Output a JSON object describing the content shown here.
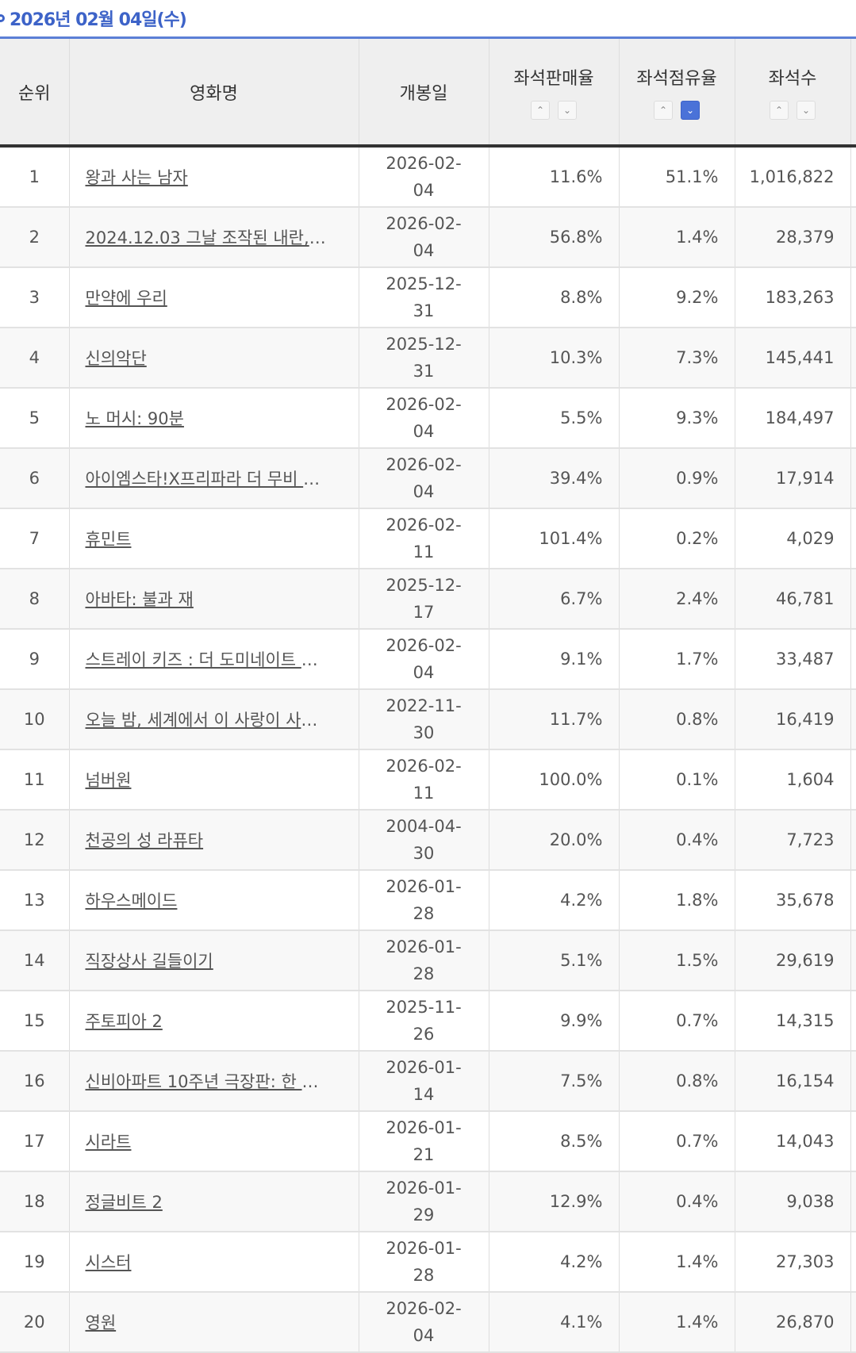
{
  "date_label": "2026년 02월 04일(수)",
  "accent_color": "#3d63c8",
  "columns": {
    "rank": "순위",
    "title": "영화명",
    "release": "개봉일",
    "sale_rate": "좌석판매율",
    "occupancy": "좌석점유율",
    "seats": "좌석수"
  },
  "sort": {
    "up": "^",
    "down": "v",
    "active": "occupancy-desc"
  },
  "ellipsis": "…",
  "rows": [
    {
      "rank": "1",
      "title": "왕과 사는 남자",
      "trunc": false,
      "release": "2026-02-04",
      "sale": "11.6%",
      "occ": "51.1%",
      "seats": "1,016,822"
    },
    {
      "rank": "2",
      "title": "2024.12.03 그날 조작된 내란,",
      "trunc": true,
      "release": "2026-02-04",
      "sale": "56.8%",
      "occ": "1.4%",
      "seats": "28,379"
    },
    {
      "rank": "3",
      "title": "만약에 우리",
      "trunc": false,
      "release": "2025-12-31",
      "sale": "8.8%",
      "occ": "9.2%",
      "seats": "183,263"
    },
    {
      "rank": "4",
      "title": "신의악단",
      "trunc": false,
      "release": "2025-12-31",
      "sale": "10.3%",
      "occ": "7.3%",
      "seats": "145,441"
    },
    {
      "rank": "5",
      "title": "노 머시: 90분",
      "trunc": false,
      "release": "2026-02-04",
      "sale": "5.5%",
      "occ": "9.3%",
      "seats": "184,497"
    },
    {
      "rank": "6",
      "title": "아이엠스타!X프리파라 더 무비 ",
      "trunc": true,
      "release": "2026-02-04",
      "sale": "39.4%",
      "occ": "0.9%",
      "seats": "17,914"
    },
    {
      "rank": "7",
      "title": "휴민트",
      "trunc": false,
      "release": "2026-02-11",
      "sale": "101.4%",
      "occ": "0.2%",
      "seats": "4,029"
    },
    {
      "rank": "8",
      "title": "아바타: 불과 재",
      "trunc": false,
      "release": "2025-12-17",
      "sale": "6.7%",
      "occ": "2.4%",
      "seats": "46,781"
    },
    {
      "rank": "9",
      "title": "스트레이 키즈 : 더 도미네이트 ",
      "trunc": true,
      "release": "2026-02-04",
      "sale": "9.1%",
      "occ": "1.7%",
      "seats": "33,487"
    },
    {
      "rank": "10",
      "title": "오늘 밤, 세계에서 이 사랑이 사",
      "trunc": true,
      "release": "2022-11-30",
      "sale": "11.7%",
      "occ": "0.8%",
      "seats": "16,419"
    },
    {
      "rank": "11",
      "title": "넘버원",
      "trunc": false,
      "release": "2026-02-11",
      "sale": "100.0%",
      "occ": "0.1%",
      "seats": "1,604"
    },
    {
      "rank": "12",
      "title": "천공의 성 라퓨타",
      "trunc": false,
      "release": "2004-04-30",
      "sale": "20.0%",
      "occ": "0.4%",
      "seats": "7,723"
    },
    {
      "rank": "13",
      "title": "하우스메이드",
      "trunc": false,
      "release": "2026-01-28",
      "sale": "4.2%",
      "occ": "1.8%",
      "seats": "35,678"
    },
    {
      "rank": "14",
      "title": "직장상사 길들이기",
      "trunc": false,
      "release": "2026-01-28",
      "sale": "5.1%",
      "occ": "1.5%",
      "seats": "29,619"
    },
    {
      "rank": "15",
      "title": "주토피아 2",
      "trunc": false,
      "release": "2025-11-26",
      "sale": "9.9%",
      "occ": "0.7%",
      "seats": "14,315"
    },
    {
      "rank": "16",
      "title": "신비아파트 10주년 극장판: 한 ",
      "trunc": true,
      "release": "2026-01-14",
      "sale": "7.5%",
      "occ": "0.8%",
      "seats": "16,154"
    },
    {
      "rank": "17",
      "title": "시라트",
      "trunc": false,
      "release": "2026-01-21",
      "sale": "8.5%",
      "occ": "0.7%",
      "seats": "14,043"
    },
    {
      "rank": "18",
      "title": "정글비트 2",
      "trunc": false,
      "release": "2026-01-29",
      "sale": "12.9%",
      "occ": "0.4%",
      "seats": "9,038"
    },
    {
      "rank": "19",
      "title": "시스터",
      "trunc": false,
      "release": "2026-01-28",
      "sale": "4.2%",
      "occ": "1.4%",
      "seats": "27,303"
    },
    {
      "rank": "20",
      "title": "영원",
      "trunc": false,
      "release": "2026-02-04",
      "sale": "4.1%",
      "occ": "1.4%",
      "seats": "26,870"
    }
  ]
}
